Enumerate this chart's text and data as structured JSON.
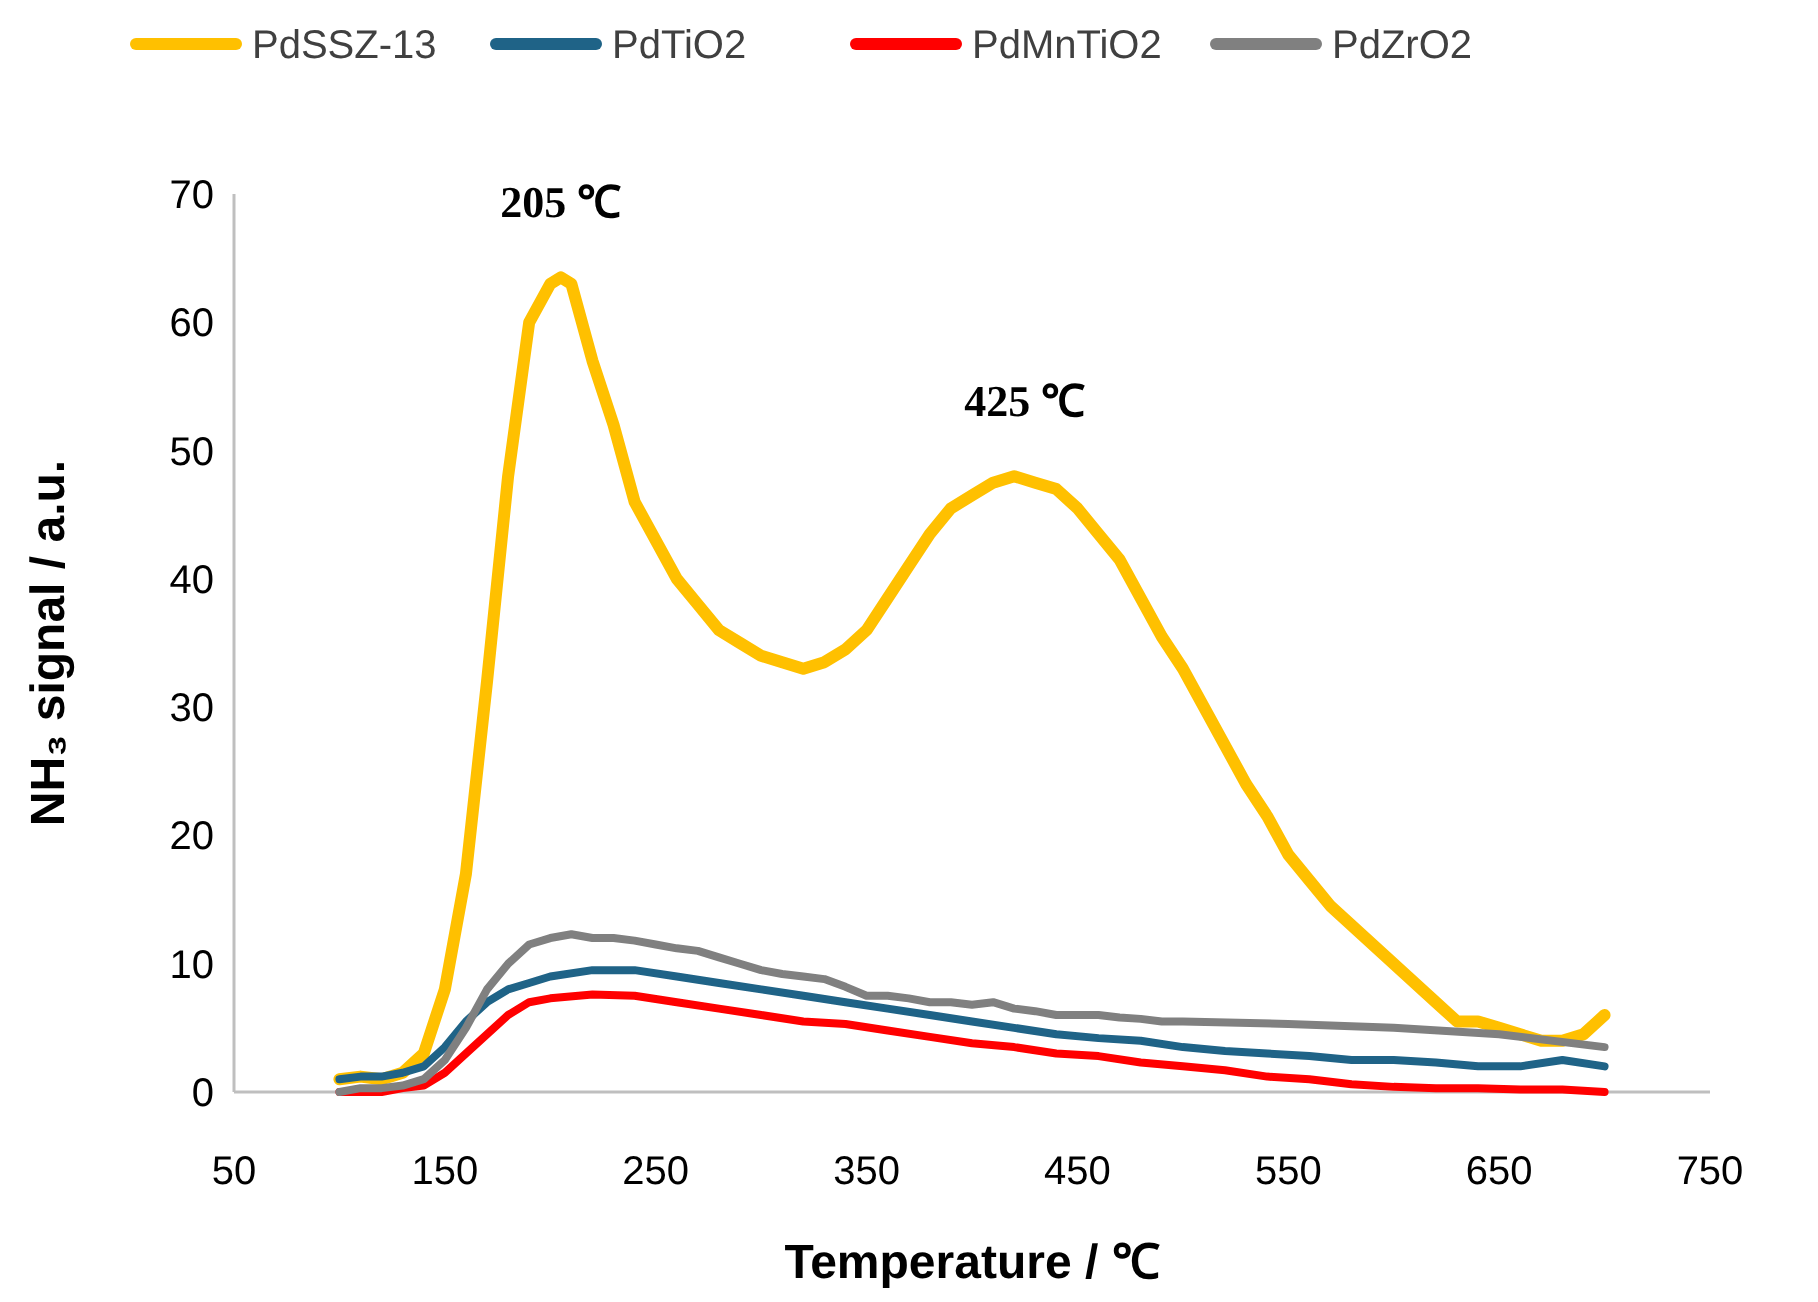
{
  "chart_data": {
    "type": "line",
    "xlabel": "Temperature / ℃",
    "ylabel": "NH₃ signal / a.u.",
    "xlim": [
      50,
      750
    ],
    "xticks": [
      50,
      150,
      250,
      350,
      450,
      550,
      650,
      750
    ],
    "ylim": [
      0,
      70
    ],
    "yticks": [
      0,
      10,
      20,
      30,
      40,
      50,
      60,
      70
    ],
    "grid": false,
    "legend": "top",
    "line_style": "solid",
    "annotations": [
      {
        "text": "205 ℃",
        "x": 205,
        "y": 63.5
      },
      {
        "text": "425 ℃",
        "x": 425,
        "y": 48
      }
    ],
    "series": [
      {
        "name": "PdSSZ-13",
        "color": "#ffc000",
        "x": [
          100,
          110,
          120,
          130,
          140,
          150,
          160,
          170,
          180,
          190,
          200,
          205,
          210,
          220,
          230,
          240,
          250,
          260,
          270,
          280,
          290,
          300,
          310,
          320,
          330,
          340,
          350,
          360,
          370,
          380,
          390,
          400,
          410,
          420,
          430,
          440,
          450,
          460,
          470,
          480,
          490,
          500,
          510,
          520,
          530,
          540,
          550,
          560,
          570,
          580,
          590,
          600,
          610,
          620,
          630,
          640,
          650,
          660,
          670,
          680,
          690,
          700
        ],
        "values": [
          1,
          1.2,
          1,
          1.5,
          3,
          8,
          17,
          32,
          48,
          60,
          63,
          63.5,
          63,
          57,
          52,
          46,
          43,
          40,
          38,
          36,
          35,
          34,
          33.5,
          33,
          33.5,
          34.5,
          36,
          38.5,
          41,
          43.5,
          45.5,
          46.5,
          47.5,
          48,
          47.5,
          47,
          45.5,
          43.5,
          41.5,
          38.5,
          35.5,
          33,
          30,
          27,
          24,
          21.5,
          18.5,
          16.5,
          14.5,
          13,
          11.5,
          10,
          8.5,
          7,
          5.5,
          5.5,
          5,
          4.5,
          4,
          4,
          4.5,
          6
        ]
      },
      {
        "name": "PdTiO2",
        "color": "#1f6387",
        "x": [
          100,
          110,
          120,
          130,
          140,
          150,
          160,
          170,
          180,
          190,
          200,
          220,
          240,
          260,
          280,
          300,
          320,
          340,
          360,
          380,
          400,
          420,
          440,
          460,
          480,
          500,
          520,
          540,
          560,
          580,
          600,
          620,
          640,
          660,
          680,
          700
        ],
        "values": [
          1,
          1.2,
          1.2,
          1.5,
          2,
          3.5,
          5.5,
          7,
          8,
          8.5,
          9,
          9.5,
          9.5,
          9,
          8.5,
          8,
          7.5,
          7,
          6.5,
          6,
          5.5,
          5,
          4.5,
          4.2,
          4,
          3.5,
          3.2,
          3,
          2.8,
          2.5,
          2.5,
          2.3,
          2,
          2,
          2.5,
          2
        ]
      },
      {
        "name": "PdMnTiO2",
        "color": "#ff0000",
        "x": [
          100,
          120,
          130,
          140,
          150,
          160,
          170,
          180,
          190,
          200,
          220,
          240,
          260,
          280,
          300,
          320,
          340,
          360,
          380,
          400,
          420,
          440,
          460,
          480,
          500,
          520,
          540,
          560,
          580,
          600,
          620,
          640,
          660,
          680,
          700
        ],
        "values": [
          0,
          0,
          0.3,
          0.5,
          1.5,
          3,
          4.5,
          6,
          7,
          7.3,
          7.6,
          7.5,
          7,
          6.5,
          6,
          5.5,
          5.3,
          4.8,
          4.3,
          3.8,
          3.5,
          3,
          2.8,
          2.3,
          2,
          1.7,
          1.2,
          1,
          0.6,
          0.4,
          0.3,
          0.3,
          0.2,
          0.2,
          0
        ]
      },
      {
        "name": "PdZrO2",
        "color": "#808080",
        "x": [
          100,
          110,
          120,
          130,
          140,
          150,
          160,
          170,
          180,
          190,
          200,
          210,
          220,
          230,
          240,
          250,
          260,
          270,
          280,
          290,
          300,
          310,
          320,
          330,
          340,
          350,
          360,
          370,
          380,
          390,
          400,
          410,
          420,
          430,
          440,
          450,
          460,
          470,
          480,
          490,
          500,
          550,
          600,
          650,
          700
        ],
        "values": [
          0,
          0.3,
          0.3,
          0.5,
          1,
          2.5,
          5,
          8,
          10,
          11.5,
          12,
          12.3,
          12,
          12,
          11.8,
          11.5,
          11.2,
          11,
          10.5,
          10,
          9.5,
          9.2,
          9,
          8.8,
          8.2,
          7.5,
          7.5,
          7.3,
          7,
          7,
          6.8,
          7,
          6.5,
          6.3,
          6,
          6,
          6,
          5.8,
          5.7,
          5.5,
          5.5,
          5.3,
          5,
          4.5,
          3.5
        ]
      }
    ]
  }
}
